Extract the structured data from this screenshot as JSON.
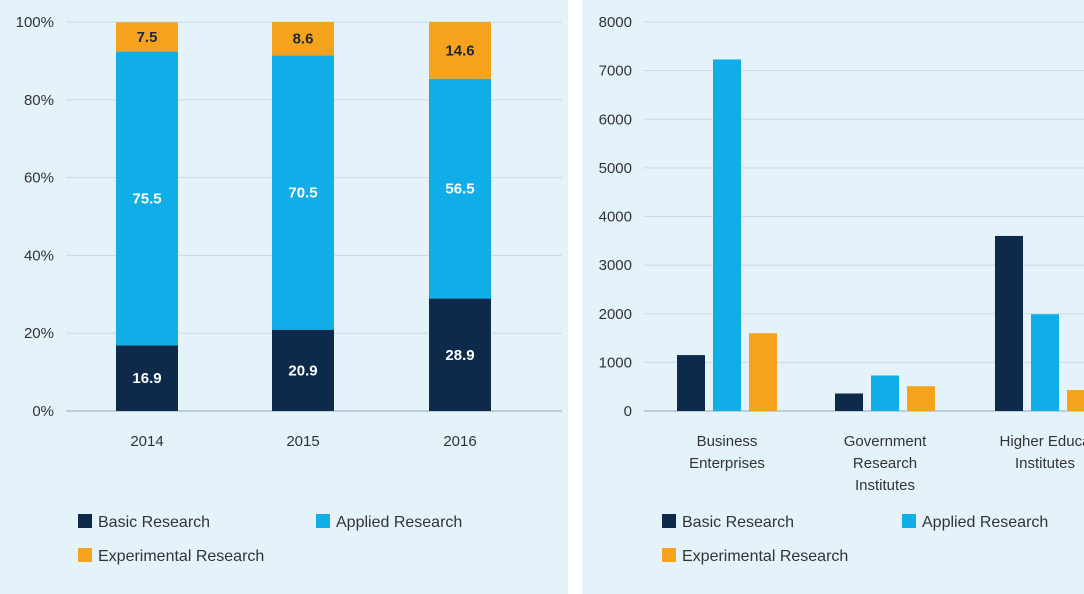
{
  "colors": {
    "basic": "#0d2a4a",
    "applied": "#10aee8",
    "experimental": "#f7a21c"
  },
  "chart_data": [
    {
      "type": "bar",
      "stacked": true,
      "categories": [
        "2014",
        "2015",
        "2016"
      ],
      "ylim": [
        0,
        100
      ],
      "yticks": [
        "0%",
        "20%",
        "40%",
        "60%",
        "80%",
        "100%"
      ],
      "series": [
        {
          "name": "Basic Research",
          "key": "basic",
          "values": [
            16.9,
            20.9,
            28.9
          ],
          "labels": [
            "16.9",
            "20.9",
            "28.9"
          ]
        },
        {
          "name": "Applied Research",
          "key": "applied",
          "values": [
            75.5,
            70.5,
            56.5
          ],
          "labels": [
            "75.5",
            "70.5",
            "56.5"
          ]
        },
        {
          "name": "Experimental Research",
          "key": "experimental",
          "values": [
            7.5,
            8.6,
            14.6
          ],
          "labels": [
            "7.5",
            "8.6",
            "14.6"
          ]
        }
      ],
      "legend": [
        "Basic Research",
        "Applied Research",
        "Experimental Research"
      ]
    },
    {
      "type": "bar",
      "stacked": false,
      "categories": [
        [
          "Business",
          "Enterprises"
        ],
        [
          "Government",
          "Research",
          "Institutes"
        ],
        [
          "Higher Educa",
          "Institutes"
        ]
      ],
      "ylim": [
        0,
        8000
      ],
      "yticks": [
        "0",
        "1000",
        "2000",
        "3000",
        "4000",
        "5000",
        "6000",
        "7000",
        "8000"
      ],
      "series": [
        {
          "name": "Basic Research",
          "key": "basic",
          "values": [
            1150,
            360,
            3600
          ]
        },
        {
          "name": "Applied Research",
          "key": "applied",
          "values": [
            7230,
            730,
            1990
          ]
        },
        {
          "name": "Experimental Research",
          "key": "experimental",
          "values": [
            1600,
            510,
            430
          ]
        }
      ],
      "legend": [
        "Basic Research",
        "Applied Research",
        "Experimental Research"
      ]
    }
  ]
}
